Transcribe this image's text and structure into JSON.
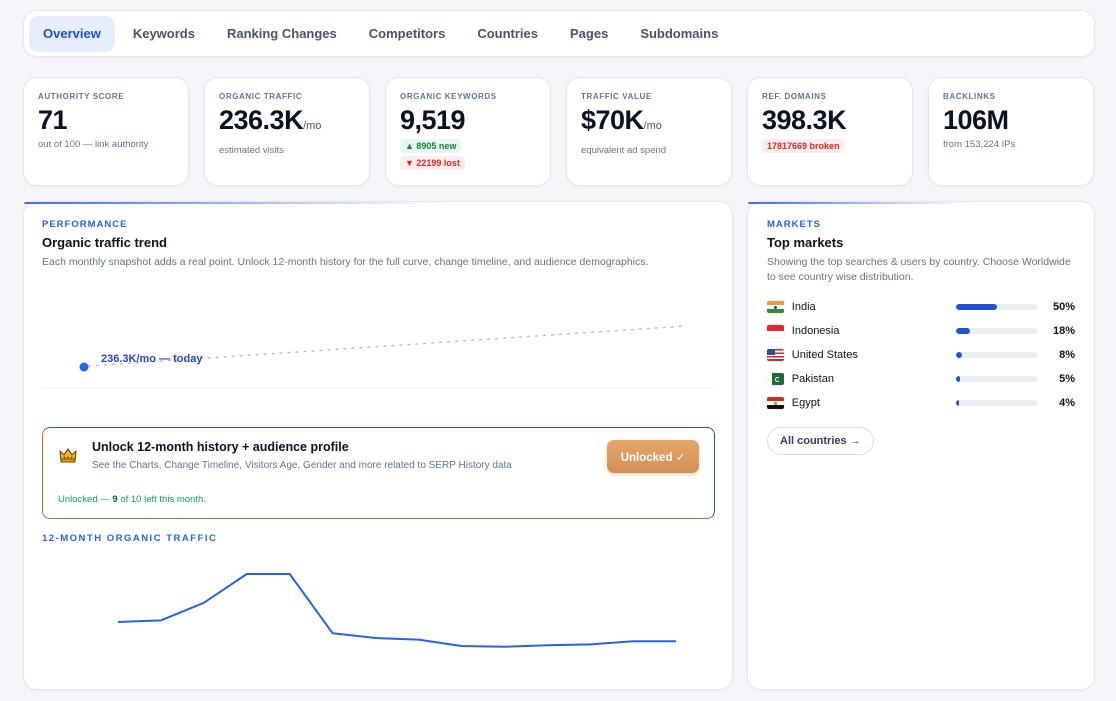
{
  "tabs": [
    "Overview",
    "Keywords",
    "Ranking Changes",
    "Competitors",
    "Countries",
    "Pages",
    "Subdomains"
  ],
  "stats": [
    {
      "label": "AUTHORITY SCORE",
      "value": "71",
      "unit": "",
      "sub": "out of 100 — link authority"
    },
    {
      "label": "ORGANIC TRAFFIC",
      "value": "236.3K",
      "unit": "/mo",
      "sub": "estimated visits"
    },
    {
      "label": "ORGANIC KEYWORDS",
      "value": "9,519",
      "new_pill": "▲ 8905 new",
      "lost_pill": "▼ 22199 lost"
    },
    {
      "label": "TRAFFIC VALUE",
      "value": "$70K",
      "unit": "/mo",
      "sub": "equivalent ad spend"
    },
    {
      "label": "REF. DOMAINS",
      "value": "398.3K",
      "broken_pill": "17817669 broken"
    },
    {
      "label": "BACKLINKS",
      "value": "106M",
      "unit": "",
      "sub": "from 153,224 IPs"
    }
  ],
  "performance": {
    "eyebrow": "PERFORMANCE",
    "title": "Organic traffic trend",
    "desc": "Each monthly snapshot adds a real point. Unlock 12-month history for the full curve, change timeline, and audience demographics.",
    "point_label": "236.3K/mo — today",
    "unlock": {
      "title": "Unlock 12-month history + audience profile",
      "desc": "See the Charts, Change Timeline, Visitors Age, Gender and more related to SERP History data",
      "button": "Unlocked ✓",
      "foot_prefix": "Unlocked — ",
      "foot_count": "9",
      "foot_suffix": " of 10 left this month."
    },
    "history_label": "12-MONTH ORGANIC TRAFFIC"
  },
  "chart_data": {
    "type": "line",
    "title": "12-MONTH ORGANIC TRAFFIC",
    "xlabel": "",
    "ylabel": "",
    "grid": false,
    "x": [
      1,
      2,
      3,
      4,
      5,
      6,
      7,
      8,
      9,
      10,
      11,
      12,
      13,
      14
    ],
    "series": [
      {
        "values": [
          70,
          71,
          82,
          100,
          100,
          63,
          60,
          59,
          55,
          54.5,
          55.5,
          56,
          58,
          58
        ]
      }
    ],
    "ylim": [
      45,
      105
    ],
    "color": "#2563eb"
  },
  "markets": {
    "eyebrow": "MARKETS",
    "title": "Top markets",
    "desc": "Showing the top searches & users by country. Choose Worldwide to see country wise distribution.",
    "rows": [
      {
        "name": "India",
        "pct": "50%",
        "share": 0.5,
        "flag": "india"
      },
      {
        "name": "Indonesia",
        "pct": "18%",
        "share": 0.18,
        "flag": "indonesia"
      },
      {
        "name": "United States",
        "pct": "8%",
        "share": 0.08,
        "flag": "us"
      },
      {
        "name": "Pakistan",
        "pct": "5%",
        "share": 0.05,
        "flag": "pakistan"
      },
      {
        "name": "Egypt",
        "pct": "4%",
        "share": 0.04,
        "flag": "egypt"
      }
    ],
    "all_button": "All countries →"
  },
  "colors": {
    "accent": "#2563eb",
    "positive": "#15803d",
    "negative": "#dc2626",
    "unlock": "#d38f55"
  }
}
